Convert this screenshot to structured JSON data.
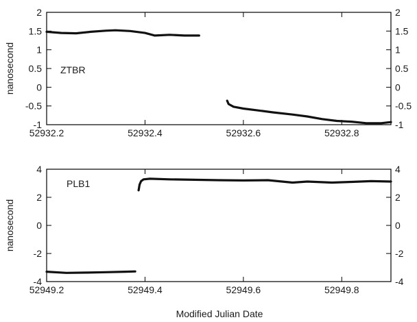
{
  "chart_data": [
    {
      "type": "line",
      "annotation": "ZTBR",
      "ylabel": "nanosecond",
      "xlabel": "",
      "xlim": [
        52932.2,
        52932.9
      ],
      "ylim": [
        -1,
        2
      ],
      "x_ticks": [
        52932.2,
        52932.4,
        52932.6,
        52932.8
      ],
      "x_tick_labels": [
        "52932.2",
        "52932.4",
        "52932.6",
        "52932.8"
      ],
      "y_ticks": [
        -1,
        -0.5,
        0,
        0.5,
        1,
        1.5,
        2
      ],
      "y_tick_labels": [
        "-1",
        "-0.5",
        "0",
        "0.5",
        "1",
        "1.5",
        "2"
      ],
      "y_ticks_right": true,
      "grid": false,
      "series": [
        {
          "points": [
            [
              52932.2,
              1.48
            ],
            [
              52932.23,
              1.45
            ],
            [
              52932.26,
              1.44
            ],
            [
              52932.29,
              1.48
            ],
            [
              52932.32,
              1.51
            ],
            [
              52932.34,
              1.52
            ],
            [
              52932.37,
              1.5
            ],
            [
              52932.4,
              1.45
            ],
            [
              52932.42,
              1.38
            ],
            [
              52932.45,
              1.4
            ],
            [
              52932.48,
              1.38
            ],
            [
              52932.51,
              1.38
            ]
          ]
        },
        {
          "points": [
            [
              52932.567,
              -0.36
            ],
            [
              52932.57,
              -0.45
            ],
            [
              52932.58,
              -0.52
            ],
            [
              52932.6,
              -0.57
            ],
            [
              52932.63,
              -0.62
            ],
            [
              52932.66,
              -0.67
            ],
            [
              52932.7,
              -0.73
            ],
            [
              52932.73,
              -0.78
            ],
            [
              52932.76,
              -0.85
            ],
            [
              52932.79,
              -0.9
            ],
            [
              52932.82,
              -0.92
            ],
            [
              52932.85,
              -0.96
            ],
            [
              52932.88,
              -0.96
            ],
            [
              52932.9,
              -0.93
            ]
          ]
        }
      ]
    },
    {
      "type": "line",
      "annotation": "PLB1",
      "ylabel": "nanosecond",
      "xlabel": "Modified Julian Date",
      "xlim": [
        52949.2,
        52949.9
      ],
      "ylim": [
        -4,
        4
      ],
      "x_ticks": [
        52949.2,
        52949.4,
        52949.6,
        52949.8
      ],
      "x_tick_labels": [
        "52949.2",
        "52949.4",
        "52949.6",
        "52949.8"
      ],
      "y_ticks": [
        -4,
        -2,
        0,
        2,
        4
      ],
      "y_tick_labels": [
        "-4",
        "-2",
        "0",
        "2",
        "4"
      ],
      "y_ticks_right": true,
      "grid": false,
      "series": [
        {
          "points": [
            [
              52949.2,
              -3.3
            ],
            [
              52949.24,
              -3.38
            ],
            [
              52949.28,
              -3.36
            ],
            [
              52949.32,
              -3.33
            ],
            [
              52949.36,
              -3.3
            ],
            [
              52949.38,
              -3.28
            ]
          ]
        },
        {
          "points": [
            [
              52949.387,
              2.5
            ],
            [
              52949.389,
              2.9
            ],
            [
              52949.392,
              3.15
            ],
            [
              52949.397,
              3.28
            ],
            [
              52949.41,
              3.32
            ],
            [
              52949.45,
              3.28
            ],
            [
              52949.5,
              3.25
            ],
            [
              52949.55,
              3.22
            ],
            [
              52949.6,
              3.2
            ],
            [
              52949.65,
              3.22
            ],
            [
              52949.7,
              3.05
            ],
            [
              52949.73,
              3.12
            ],
            [
              52949.78,
              3.05
            ],
            [
              52949.82,
              3.1
            ],
            [
              52949.86,
              3.15
            ],
            [
              52949.9,
              3.12
            ]
          ]
        }
      ]
    }
  ]
}
